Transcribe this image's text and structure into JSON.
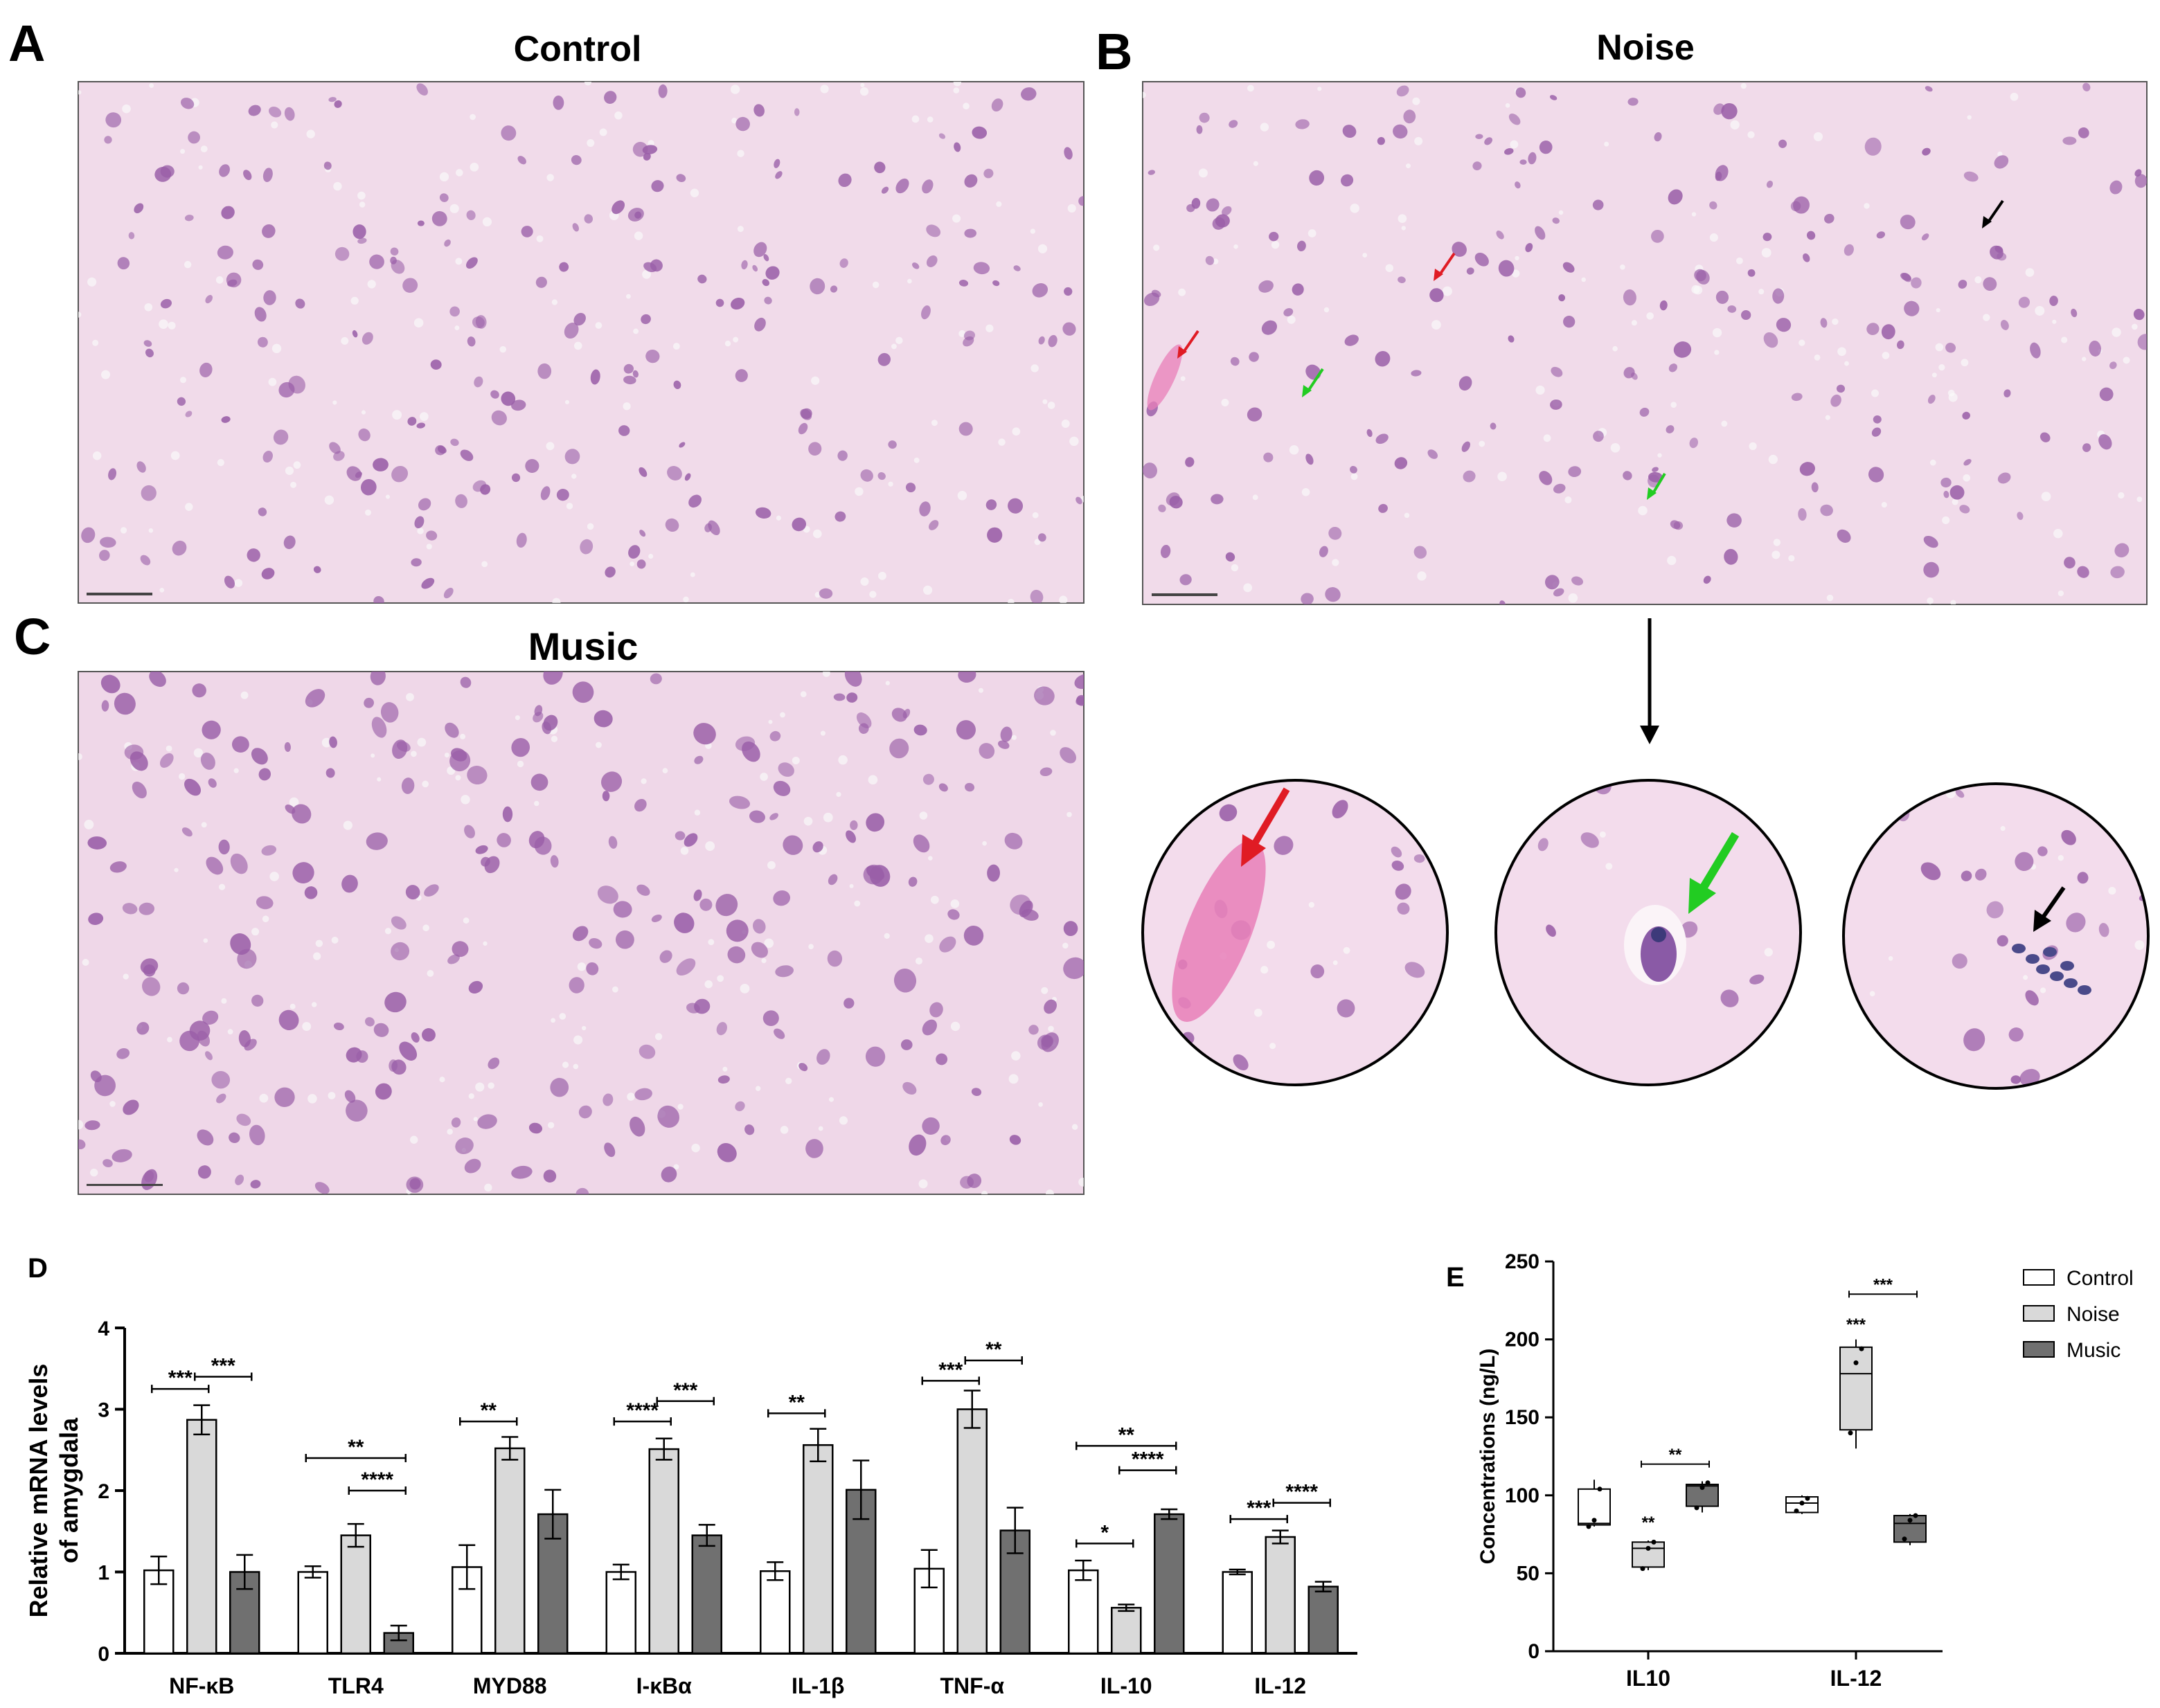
{
  "panels": {
    "A": {
      "letter": "A",
      "title": "Control"
    },
    "B": {
      "letter": "B",
      "title": "Noise"
    },
    "C": {
      "letter": "C",
      "title": "Music"
    },
    "D": {
      "letter": "D"
    },
    "E": {
      "letter": "E"
    }
  },
  "colors": {
    "tissue": "#f1dbea",
    "cell": "#9a5fa8",
    "eosin": "#e87fb8",
    "arrow_red": "#e01b24",
    "arrow_green": "#22cc22",
    "arrow_black": "#000000",
    "control": "#ffffff",
    "noise": "#d9d9d9",
    "music": "#707070"
  },
  "chart_data": [
    {
      "panel": "D",
      "type": "bar",
      "ylabel_line1": "Relative mRNA levels",
      "ylabel_line2": "of amygdala",
      "ylim": [
        0,
        4
      ],
      "yticks": [
        "0",
        "1",
        "2",
        "3",
        "4"
      ],
      "categories": [
        "NF-κB",
        "TLR4",
        "MYD88",
        "I-κBα",
        "IL-1β",
        "TNF-α",
        "IL-10",
        "IL-12"
      ],
      "series": [
        {
          "name": "Control",
          "values": [
            1.02,
            1.0,
            1.06,
            1.0,
            1.01,
            1.04,
            1.02,
            1.0
          ],
          "errors": [
            0.17,
            0.07,
            0.27,
            0.09,
            0.11,
            0.23,
            0.12,
            0.03
          ]
        },
        {
          "name": "Noise",
          "values": [
            2.87,
            1.45,
            2.52,
            2.51,
            2.56,
            3.0,
            0.56,
            1.43
          ],
          "errors": [
            0.18,
            0.14,
            0.14,
            0.13,
            0.2,
            0.23,
            0.04,
            0.08
          ]
        },
        {
          "name": "Music",
          "values": [
            1.0,
            0.25,
            1.71,
            1.45,
            2.01,
            1.51,
            1.71,
            0.82
          ],
          "errors": [
            0.21,
            0.09,
            0.3,
            0.13,
            0.36,
            0.28,
            0.06,
            0.06
          ]
        }
      ],
      "significance": [
        {
          "cat": 0,
          "from": 0,
          "to": 1,
          "y": 3.25,
          "label": "***"
        },
        {
          "cat": 0,
          "from": 1,
          "to": 2,
          "y": 3.4,
          "label": "***"
        },
        {
          "cat": 1,
          "from": 0,
          "to": 2,
          "y": 2.4,
          "label": "**"
        },
        {
          "cat": 1,
          "from": 1,
          "to": 2,
          "y": 2.0,
          "label": "****"
        },
        {
          "cat": 2,
          "from": 0,
          "to": 1,
          "y": 2.85,
          "label": "**"
        },
        {
          "cat": 3,
          "from": 0,
          "to": 1,
          "y": 2.85,
          "label": "****"
        },
        {
          "cat": 3,
          "from": 1,
          "to": 2,
          "y": 3.1,
          "label": "***"
        },
        {
          "cat": 4,
          "from": 0,
          "to": 1,
          "y": 2.95,
          "label": "**"
        },
        {
          "cat": 5,
          "from": 0,
          "to": 1,
          "y": 3.35,
          "label": "***"
        },
        {
          "cat": 5,
          "from": 1,
          "to": 2,
          "y": 3.6,
          "label": "**"
        },
        {
          "cat": 6,
          "from": 0,
          "to": 2,
          "y": 2.55,
          "label": "**"
        },
        {
          "cat": 6,
          "from": 1,
          "to": 2,
          "y": 2.25,
          "label": "****"
        },
        {
          "cat": 6,
          "from": 0,
          "to": 1,
          "y": 1.35,
          "label": "*"
        },
        {
          "cat": 7,
          "from": 0,
          "to": 1,
          "y": 1.65,
          "label": "***"
        },
        {
          "cat": 7,
          "from": 1,
          "to": 2,
          "y": 1.85,
          "label": "****"
        }
      ]
    },
    {
      "panel": "E",
      "type": "box",
      "ylabel": "Concentrations (ng/L)",
      "ylim": [
        0,
        250
      ],
      "yticks": [
        "0",
        "50",
        "100",
        "150",
        "200",
        "250"
      ],
      "categories": [
        "IL10",
        "IL-12"
      ],
      "legend": [
        "Control",
        "Noise",
        "Music"
      ],
      "legend_position": "top-right",
      "boxes": [
        {
          "cat": 0,
          "series": 0,
          "min": 80,
          "q1": 81,
          "median": 82,
          "q3": 104,
          "max": 110,
          "points": [
            80,
            84,
            104
          ]
        },
        {
          "cat": 0,
          "series": 1,
          "min": 52,
          "q1": 54,
          "median": 66,
          "q3": 70,
          "max": 71,
          "points": [
            53,
            66,
            70
          ]
        },
        {
          "cat": 0,
          "series": 2,
          "min": 89,
          "q1": 93,
          "median": 106,
          "q3": 107,
          "max": 109,
          "points": [
            92,
            105,
            108
          ]
        },
        {
          "cat": 1,
          "series": 0,
          "min": 88,
          "q1": 89,
          "median": 95,
          "q3": 99,
          "max": 100,
          "points": [
            90,
            95,
            98
          ]
        },
        {
          "cat": 1,
          "series": 1,
          "min": 130,
          "q1": 142,
          "median": 178,
          "q3": 195,
          "max": 200,
          "points": [
            140,
            185,
            194
          ]
        },
        {
          "cat": 1,
          "series": 2,
          "min": 68,
          "q1": 70,
          "median": 82,
          "q3": 87,
          "max": 88,
          "points": [
            72,
            84,
            87
          ]
        }
      ],
      "annotations": [
        {
          "cat": 0,
          "series": 1,
          "y": 79,
          "label": "**"
        },
        {
          "cat": 1,
          "series": 1,
          "y": 206,
          "label": "***"
        }
      ],
      "brackets": [
        {
          "cat": 0,
          "from": 1,
          "to": 2,
          "y": 120,
          "label": "**"
        },
        {
          "cat": 1,
          "from": 1,
          "to": 2,
          "y": 229,
          "label": "***"
        }
      ]
    }
  ]
}
